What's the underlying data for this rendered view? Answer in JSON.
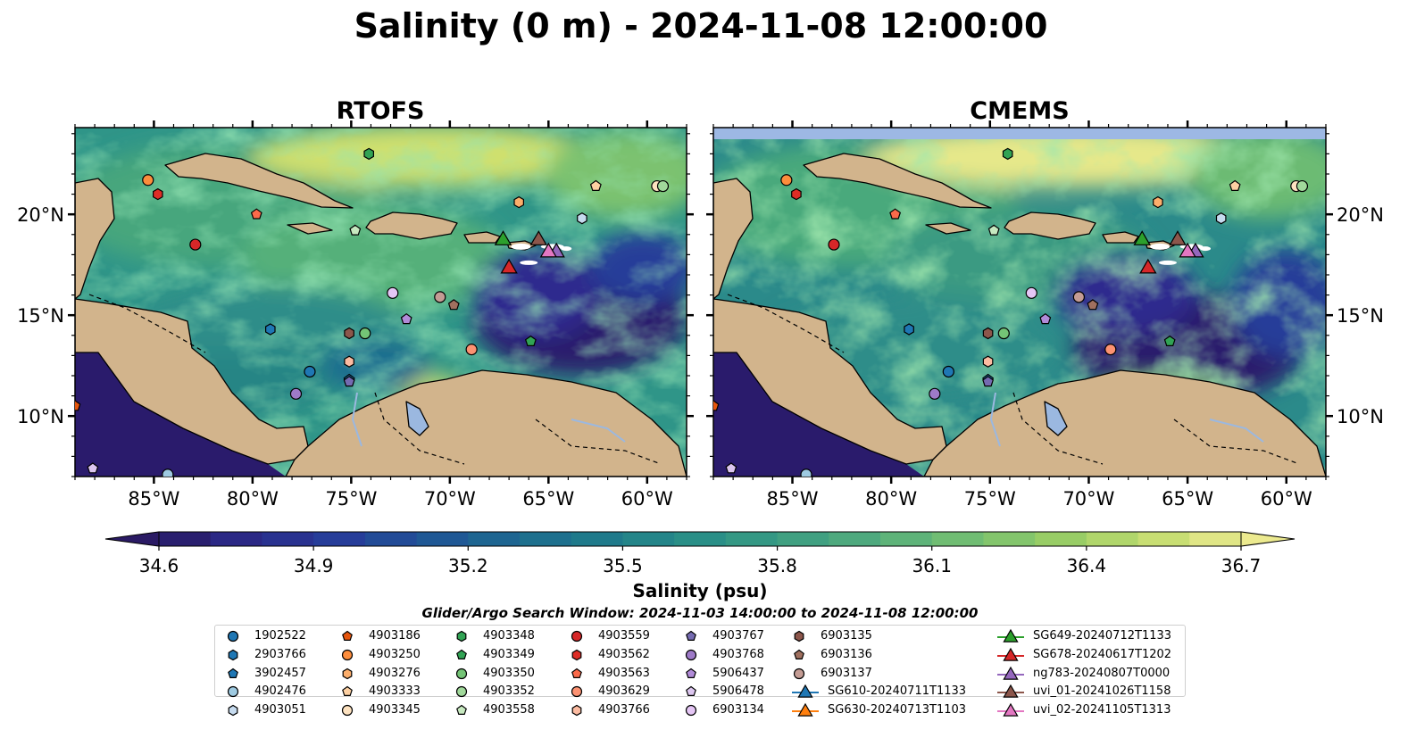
{
  "figure": {
    "title": "Salinity (0 m) - 2024-11-08 12:00:00",
    "left_panel_title": "RTOFS",
    "right_panel_title": "CMEMS",
    "colorbar_label": "Salinity (psu)",
    "search_window": "Glider/Argo Search Window: 2024-11-03 14:00:00 to 2024-11-08 12:00:00"
  },
  "chart_data": {
    "type": "map",
    "extent": {
      "lon": [
        -89,
        -58
      ],
      "lat": [
        7,
        24.3
      ]
    },
    "lon_ticks": [
      -85,
      -80,
      -75,
      -70,
      -65,
      -60
    ],
    "lon_tick_labels": [
      "85°W",
      "80°W",
      "75°W",
      "70°W",
      "65°W",
      "60°W"
    ],
    "lat_ticks": [
      10,
      15,
      20
    ],
    "lat_tick_labels": [
      "10°N",
      "15°N",
      "20°N"
    ],
    "colorbar": {
      "min": 34.6,
      "max": 36.7,
      "ticks": [
        34.6,
        34.9,
        35.2,
        35.5,
        35.8,
        36.1,
        36.4,
        36.7
      ],
      "tick_labels": [
        "34.6",
        "34.9",
        "35.2",
        "35.5",
        "35.8",
        "36.1",
        "36.4",
        "36.7"
      ],
      "extend": "both",
      "colors": [
        "#2a1a64",
        "#2b2a8a",
        "#263d99",
        "#1f5596",
        "#1e6b8f",
        "#1f7d8a",
        "#2a8f87",
        "#3c9e82",
        "#55ae7c",
        "#74bf71",
        "#98cd66",
        "#c2dc6e",
        "#ecea8f"
      ]
    },
    "colors": {
      "land": "#d2b48c",
      "lake": "#9bb8e0",
      "cmems_nodata": "#9db8e4"
    },
    "floats": [
      {
        "name": "1902522",
        "lon": -77.1,
        "lat": 12.2,
        "marker": "circle",
        "color": "#1f77b4"
      },
      {
        "name": "2903766",
        "lon": -79.1,
        "lat": 14.3,
        "marker": "hexagon",
        "color": "#1f77b4"
      },
      {
        "name": "3902457",
        "lon": -75.1,
        "lat": 11.8,
        "marker": "pentagon",
        "color": "#1f77b4"
      },
      {
        "name": "4902476",
        "lon": -84.3,
        "lat": 7.1,
        "marker": "circle",
        "color": "#9ecae1"
      },
      {
        "name": "4903051",
        "lon": -63.3,
        "lat": 19.8,
        "marker": "hexagon",
        "color": "#c6dbef"
      },
      {
        "name": "4903186",
        "lon": -89.0,
        "lat": 10.5,
        "marker": "pentagon",
        "color": "#e6550d"
      },
      {
        "name": "4903250",
        "lon": -85.3,
        "lat": 21.7,
        "marker": "circle",
        "color": "#fd8d3c"
      },
      {
        "name": "4903276",
        "lon": -66.5,
        "lat": 20.6,
        "marker": "hexagon",
        "color": "#fdae6b"
      },
      {
        "name": "4903333",
        "lon": -62.6,
        "lat": 21.4,
        "marker": "pentagon",
        "color": "#fdd0a2"
      },
      {
        "name": "4903345",
        "lon": -59.5,
        "lat": 21.4,
        "marker": "circle",
        "color": "#fde2c0"
      },
      {
        "name": "4903348",
        "lon": -74.1,
        "lat": 23.0,
        "marker": "hexagon",
        "color": "#31a354"
      },
      {
        "name": "4903349",
        "lon": -65.9,
        "lat": 13.7,
        "marker": "pentagon",
        "color": "#31a354"
      },
      {
        "name": "4903350",
        "lon": -74.3,
        "lat": 14.1,
        "marker": "circle",
        "color": "#74c476"
      },
      {
        "name": "4903352",
        "lon": -59.2,
        "lat": 21.4,
        "marker": "circle",
        "color": "#a1d99b"
      },
      {
        "name": "4903558",
        "lon": -74.8,
        "lat": 19.2,
        "marker": "pentagon",
        "color": "#c7e9c0"
      },
      {
        "name": "4903559",
        "lon": -82.9,
        "lat": 18.5,
        "marker": "circle",
        "color": "#d62728"
      },
      {
        "name": "4903562",
        "lon": -84.8,
        "lat": 21.0,
        "marker": "hexagon",
        "color": "#de2d26"
      },
      {
        "name": "4903563",
        "lon": -79.8,
        "lat": 20.0,
        "marker": "pentagon",
        "color": "#fb6a4a"
      },
      {
        "name": "4903629",
        "lon": -68.9,
        "lat": 13.3,
        "marker": "circle",
        "color": "#fc9272"
      },
      {
        "name": "4903766",
        "lon": -75.1,
        "lat": 12.7,
        "marker": "hexagon",
        "color": "#fcbba1"
      },
      {
        "name": "4903767",
        "lon": -75.1,
        "lat": 11.7,
        "marker": "pentagon",
        "color": "#756bb1"
      },
      {
        "name": "4903768",
        "lon": -77.8,
        "lat": 11.1,
        "marker": "circle",
        "color": "#9e7ac8"
      },
      {
        "name": "5906437",
        "lon": -72.2,
        "lat": 14.8,
        "marker": "pentagon",
        "color": "#b18bd8"
      },
      {
        "name": "5906478",
        "lon": -88.1,
        "lat": 7.4,
        "marker": "pentagon",
        "color": "#dcc6ef"
      },
      {
        "name": "6903134",
        "lon": -72.9,
        "lat": 16.1,
        "marker": "circle",
        "color": "#e5c6f5"
      },
      {
        "name": "6903135",
        "lon": -75.1,
        "lat": 14.1,
        "marker": "hexagon",
        "color": "#8c564b"
      },
      {
        "name": "6903136",
        "lon": -69.8,
        "lat": 15.5,
        "marker": "pentagon",
        "color": "#a0705f"
      },
      {
        "name": "6903137",
        "lon": -70.5,
        "lat": 15.9,
        "marker": "circle",
        "color": "#c49c94"
      }
    ],
    "gliders": [
      {
        "name": "SG610-20240711T1133",
        "color": "#1f77b4"
      },
      {
        "name": "SG630-20240713T1103",
        "color": "#ff7f0e"
      },
      {
        "name": "SG649-20240712T1133",
        "color": "#2ca02c",
        "lon": -67.3,
        "lat": 18.8
      },
      {
        "name": "SG678-20240617T1202",
        "color": "#d62728",
        "lon": -67.0,
        "lat": 17.4
      },
      {
        "name": "ng783-20240807T0000",
        "color": "#9467bd",
        "lon": -64.6,
        "lat": 18.2
      },
      {
        "name": "uvi_01-20241026T1158",
        "color": "#8c564b",
        "lon": -65.5,
        "lat": 18.8
      },
      {
        "name": "uvi_02-20241105T1313",
        "color": "#e377c2",
        "lon": -65.0,
        "lat": 18.2
      }
    ]
  }
}
